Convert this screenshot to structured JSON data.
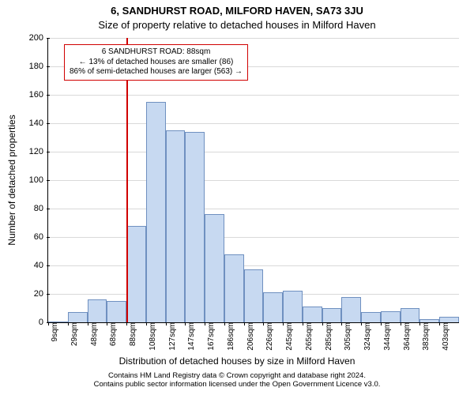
{
  "title": "6, SANDHURST ROAD, MILFORD HAVEN, SA73 3JU",
  "subtitle": "Size of property relative to detached houses in Milford Haven",
  "ylabel": "Number of detached properties",
  "xlabel": "Distribution of detached houses by size in Milford Haven",
  "credits": {
    "line1": "Contains HM Land Registry data © Crown copyright and database right 2024.",
    "line2": "Contains public sector information licensed under the Open Government Licence v3.0."
  },
  "chart": {
    "type": "histogram",
    "ymax": 200,
    "yticks": [
      0,
      20,
      40,
      60,
      80,
      100,
      120,
      140,
      160,
      180,
      200
    ],
    "xtick_labels": [
      "9sqm",
      "29sqm",
      "48sqm",
      "68sqm",
      "88sqm",
      "108sqm",
      "127sqm",
      "147sqm",
      "167sqm",
      "186sqm",
      "206sqm",
      "226sqm",
      "245sqm",
      "265sqm",
      "285sqm",
      "305sqm",
      "324sqm",
      "344sqm",
      "364sqm",
      "383sqm",
      "403sqm"
    ],
    "values": [
      0,
      7,
      16,
      15,
      68,
      155,
      135,
      134,
      76,
      48,
      37,
      21,
      22,
      11,
      10,
      18,
      7,
      8,
      10,
      2,
      4
    ],
    "bar_color": "#c7d9f1",
    "bar_border_color": "#6f90c0",
    "grid_color": "#d9d9d9",
    "background_color": "#ffffff",
    "bar_gap_ratio": 0.0,
    "marker": {
      "index_edge": 4,
      "color": "#d00000",
      "box": {
        "line1": "6 SANDHURST ROAD: 88sqm",
        "line2": "← 13% of detached houses are smaller (86)",
        "line3": "86% of semi-detached houses are larger (563) →"
      }
    },
    "fontsize": {
      "title": 13,
      "subtitle": 13,
      "axis_label": 12,
      "tick": 11,
      "xtick": 10,
      "marker_box": 10,
      "credits": 9.5
    }
  }
}
